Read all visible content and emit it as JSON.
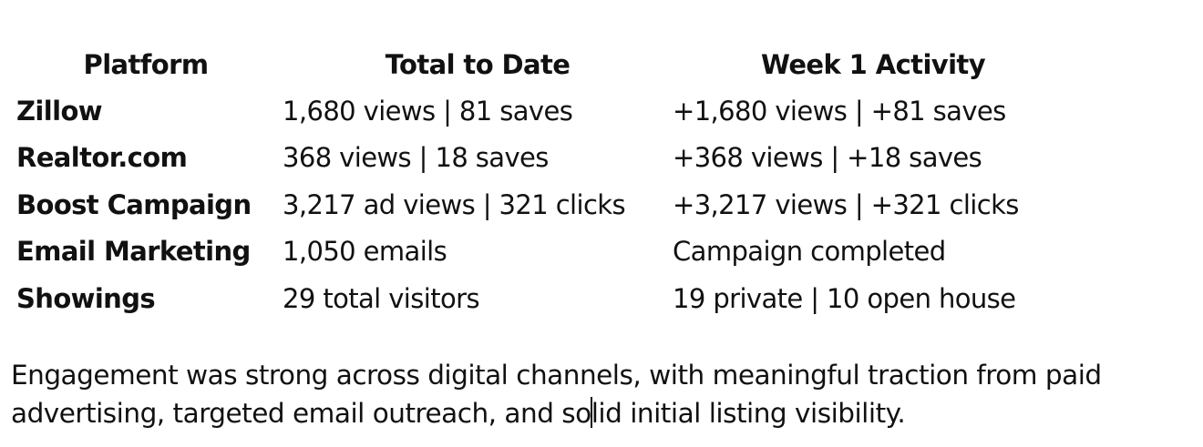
{
  "table": {
    "headers": [
      "Platform",
      "Total to Date",
      "Week 1 Activity"
    ],
    "rows": [
      {
        "platform": "Zillow",
        "total": "1,680 views | 81 saves",
        "week1": "+1,680 views | +81 saves"
      },
      {
        "platform": "Realtor.com",
        "total": "368 views | 18 saves",
        "week1": "+368 views | +18 saves"
      },
      {
        "platform": "Boost Campaign",
        "total": "3,217 ad views | 321 clicks",
        "week1": "+3,217 views | +321 clicks"
      },
      {
        "platform": "Email Marketing",
        "total": "1,050 emails",
        "week1": "Campaign completed"
      },
      {
        "platform": "Showings",
        "total": "29 total visitors",
        "week1": "19 private | 10 open house"
      }
    ]
  },
  "paragraph": {
    "before_caret": "Engagement was strong across digital channels, with meaningful traction from paid advertising, targeted email outreach, and so",
    "after_caret": "lid initial listing visibility."
  }
}
